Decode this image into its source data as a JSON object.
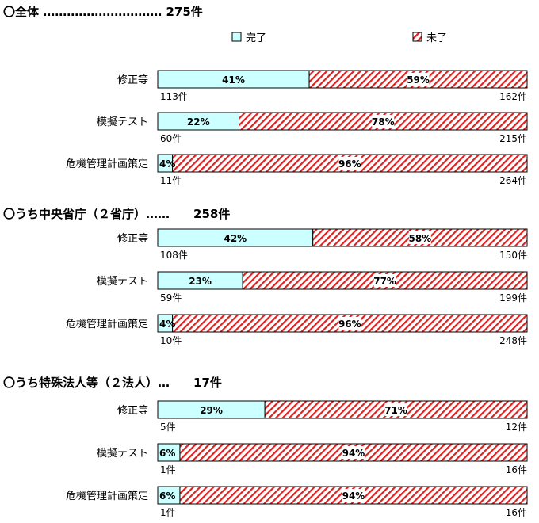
{
  "legend": {
    "done": "完了",
    "not_done": "未了"
  },
  "colors": {
    "done_fill": "#ccffff",
    "stripe": "#dd2222",
    "border": "#000000"
  },
  "chart_data": [
    {
      "type": "bar",
      "heading": "〇全体 ………………………… 275件",
      "categories": [
        "修正等",
        "模擬テスト",
        "危機管理計画策定"
      ],
      "series": [
        {
          "name": "完了",
          "values": [
            41,
            22,
            4
          ],
          "counts": [
            "113件",
            "60件",
            "11件"
          ]
        },
        {
          "name": "未了",
          "values": [
            59,
            78,
            96
          ],
          "counts": [
            "162件",
            "215件",
            "264件"
          ]
        }
      ],
      "xlim": [
        0,
        100
      ]
    },
    {
      "type": "bar",
      "heading": "〇うち中央省庁（２省庁）……　　258件",
      "categories": [
        "修正等",
        "模擬テスト",
        "危機管理計画策定"
      ],
      "series": [
        {
          "name": "完了",
          "values": [
            42,
            23,
            4
          ],
          "counts": [
            "108件",
            "59件",
            "10件"
          ]
        },
        {
          "name": "未了",
          "values": [
            58,
            77,
            96
          ],
          "counts": [
            "150件",
            "199件",
            "248件"
          ]
        }
      ],
      "xlim": [
        0,
        100
      ]
    },
    {
      "type": "bar",
      "heading": "〇うち特殊法人等（２法人）…　　17件",
      "categories": [
        "修正等",
        "模擬テスト",
        "危機管理計画策定"
      ],
      "series": [
        {
          "name": "完了",
          "values": [
            29,
            6,
            6
          ],
          "counts": [
            "5件",
            "1件",
            "1件"
          ]
        },
        {
          "name": "未了",
          "values": [
            71,
            94,
            94
          ],
          "counts": [
            "12件",
            "16件",
            "16件"
          ]
        }
      ],
      "xlim": [
        0,
        100
      ]
    }
  ]
}
